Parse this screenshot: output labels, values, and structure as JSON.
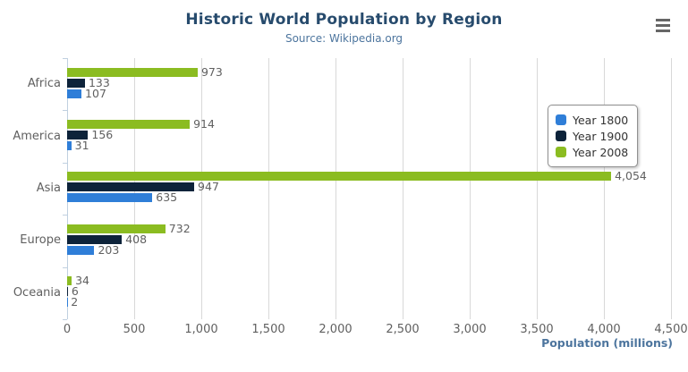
{
  "chart_data": {
    "type": "bar",
    "orientation": "horizontal",
    "title": "Historic World Population by Region",
    "subtitle": "Source: Wikipedia.org",
    "categories": [
      "Africa",
      "America",
      "Asia",
      "Europe",
      "Oceania"
    ],
    "series": [
      {
        "name": "Year 1800",
        "color": "#2f7ed8",
        "values": [
          107,
          31,
          635,
          203,
          2
        ]
      },
      {
        "name": "Year 1900",
        "color": "#0d233a",
        "values": [
          133,
          156,
          947,
          408,
          6
        ]
      },
      {
        "name": "Year 2008",
        "color": "#8bbc21",
        "values": [
          973,
          914,
          4054,
          732,
          34
        ]
      }
    ],
    "bar_display_order_top_to_bottom": [
      "Year 2008",
      "Year 1900",
      "Year 1800"
    ],
    "xlabel": "Population (millions)",
    "xlim": [
      0,
      4500
    ],
    "tick_interval": 500,
    "x_tick_labels": [
      "0",
      "500",
      "1,000",
      "1,500",
      "2,000",
      "2,500",
      "3,000",
      "3,500",
      "4,000",
      "4,500"
    ],
    "grid": true,
    "data_labels": true,
    "legend": {
      "position": "right-inside",
      "entries": [
        {
          "label": "Year 1800",
          "color": "#2f7ed8"
        },
        {
          "label": "Year 1900",
          "color": "#0d233a"
        },
        {
          "label": "Year 2008",
          "color": "#8bbc21"
        }
      ]
    }
  },
  "colors": {
    "title": "#274b6d",
    "subtitle": "#4d759e",
    "axis_label": "#606060",
    "axis_title": "#4d759e",
    "axis_line": "#c0d0e0",
    "grid_line": "#d8d8d8",
    "legend_border": "#909090",
    "legend_text": "#333333",
    "menu_icon": "#666666",
    "background": "#ffffff"
  },
  "menu": {
    "name": "chart-context-menu"
  }
}
